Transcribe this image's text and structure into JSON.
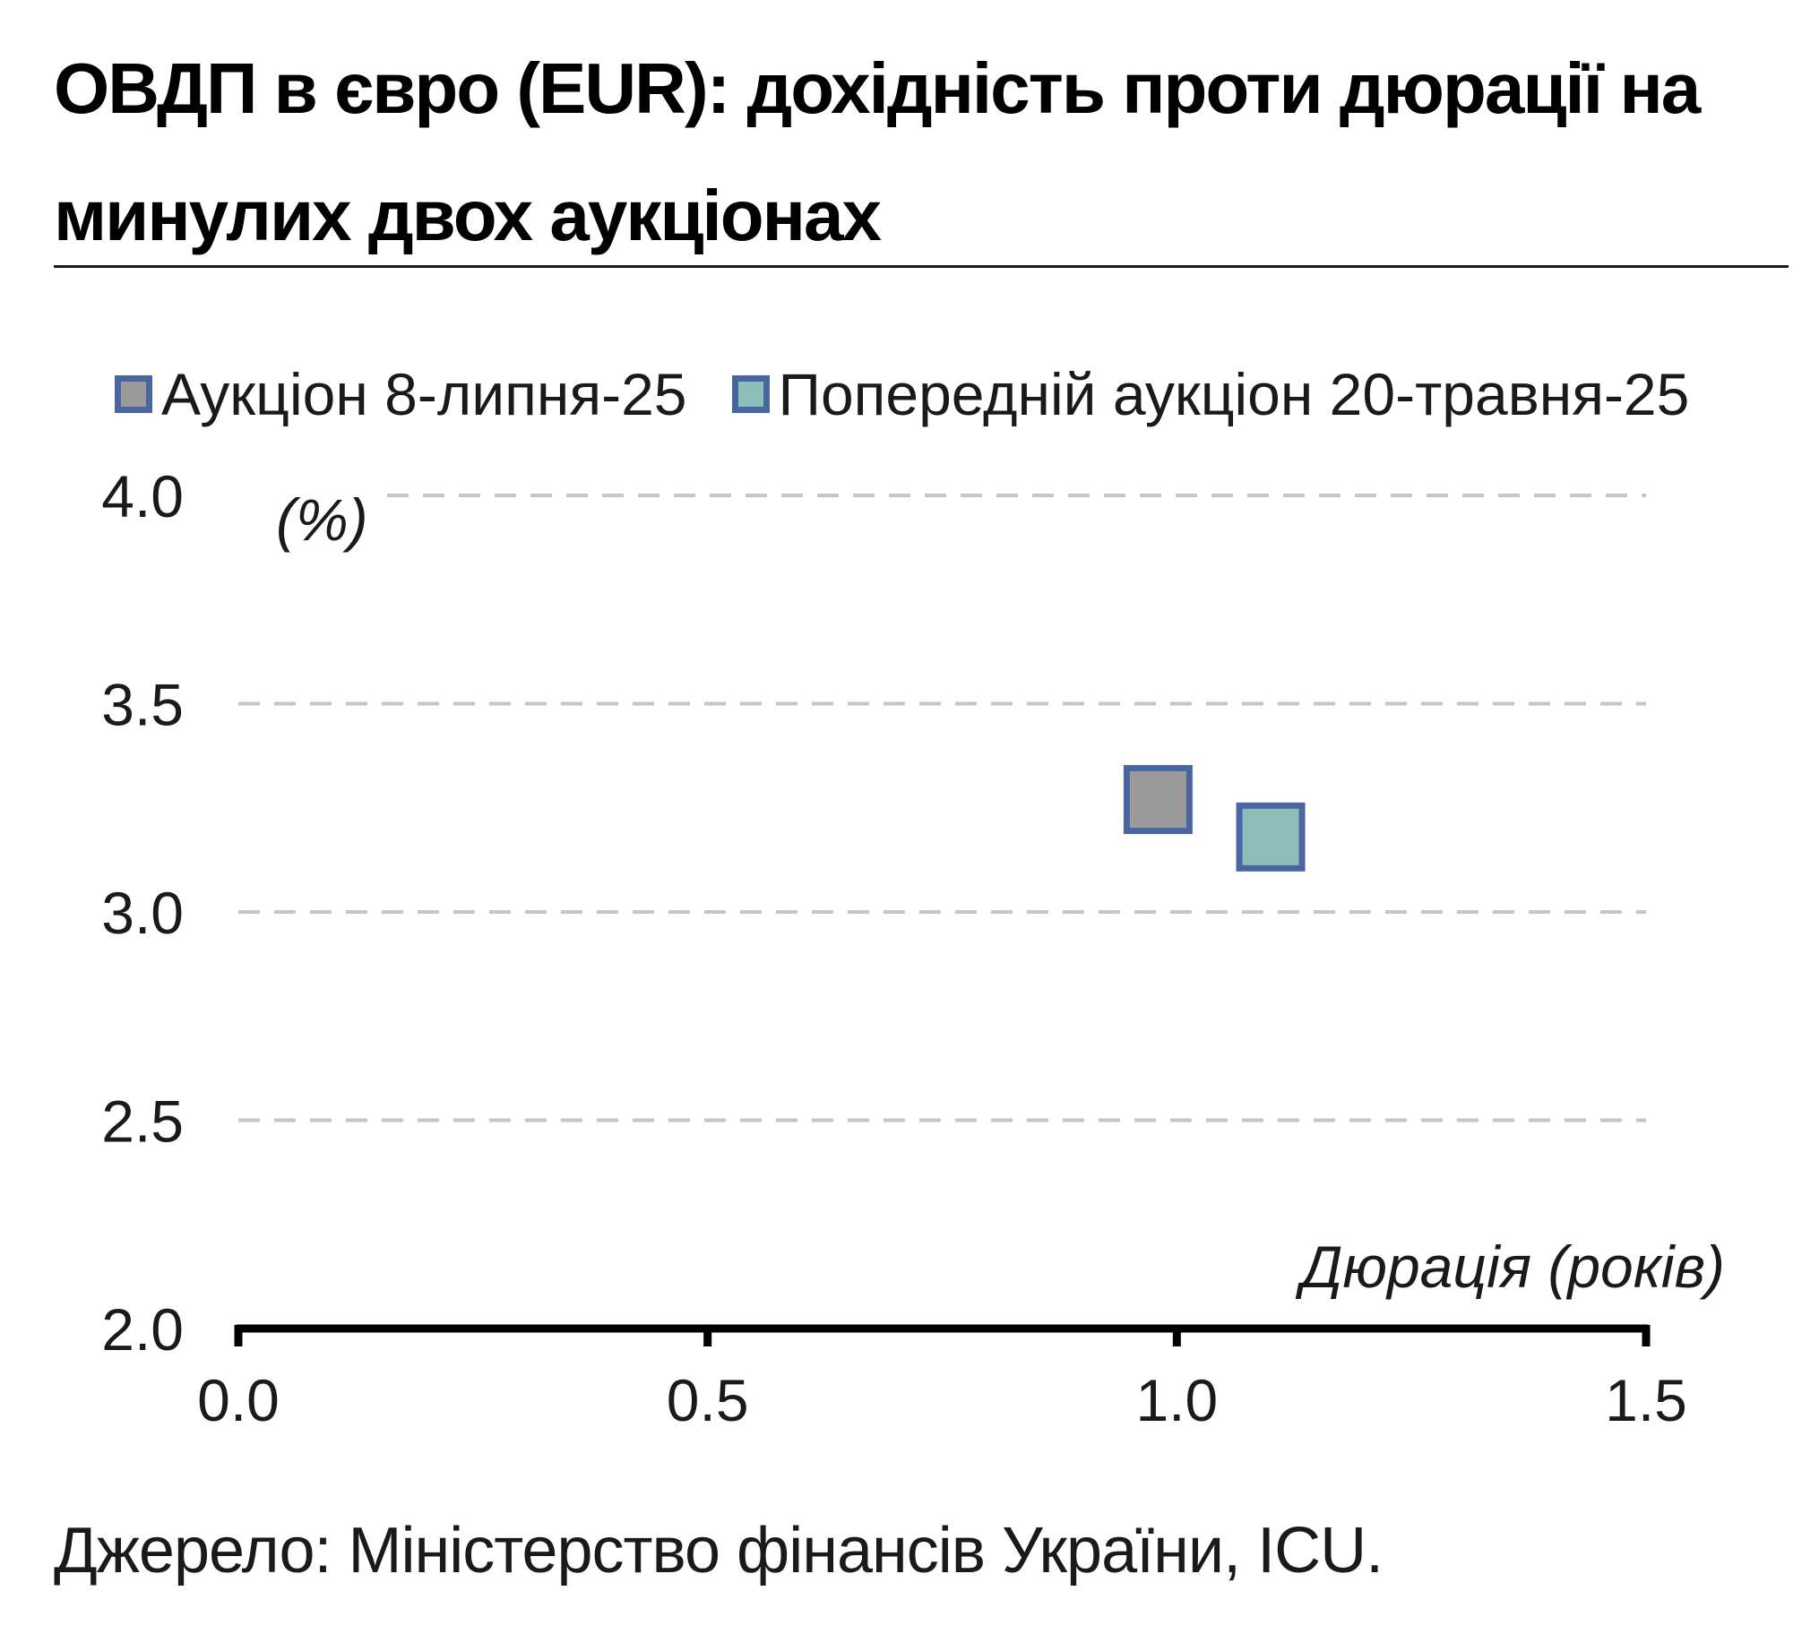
{
  "title": "ОВДП в євро (EUR): дохідність проти дюрації на минулих двох аукціонах",
  "source": "Джерело: Міністерство фінансів України, ICU.",
  "chart_data": {
    "type": "scatter",
    "title": "ОВДП в євро (EUR): дохідність проти дюрації на минулих двох аукціонах",
    "xlabel": "Дюрація (років)",
    "ylabel": "(%)",
    "xlim": [
      0.0,
      1.5
    ],
    "ylim": [
      2.0,
      4.0
    ],
    "x_ticks": [
      "0.0",
      "0.5",
      "1.0",
      "1.5"
    ],
    "y_ticks": [
      "2.0",
      "2.5",
      "3.0",
      "3.5",
      "4.0"
    ],
    "grid": "horizontal dashed",
    "legend_position": "top-left",
    "series": [
      {
        "name": "Аукціон 8-липня-25",
        "color": "#9b9b9b",
        "edge_color": "#4a66a0",
        "marker": "square",
        "points": [
          {
            "x": 0.98,
            "y": 3.27
          }
        ]
      },
      {
        "name": "Попередній аукціон 20-травня-25",
        "color": "#8cbdb9",
        "edge_color": "#4a66a0",
        "marker": "square",
        "points": [
          {
            "x": 1.1,
            "y": 3.18
          }
        ]
      }
    ]
  }
}
